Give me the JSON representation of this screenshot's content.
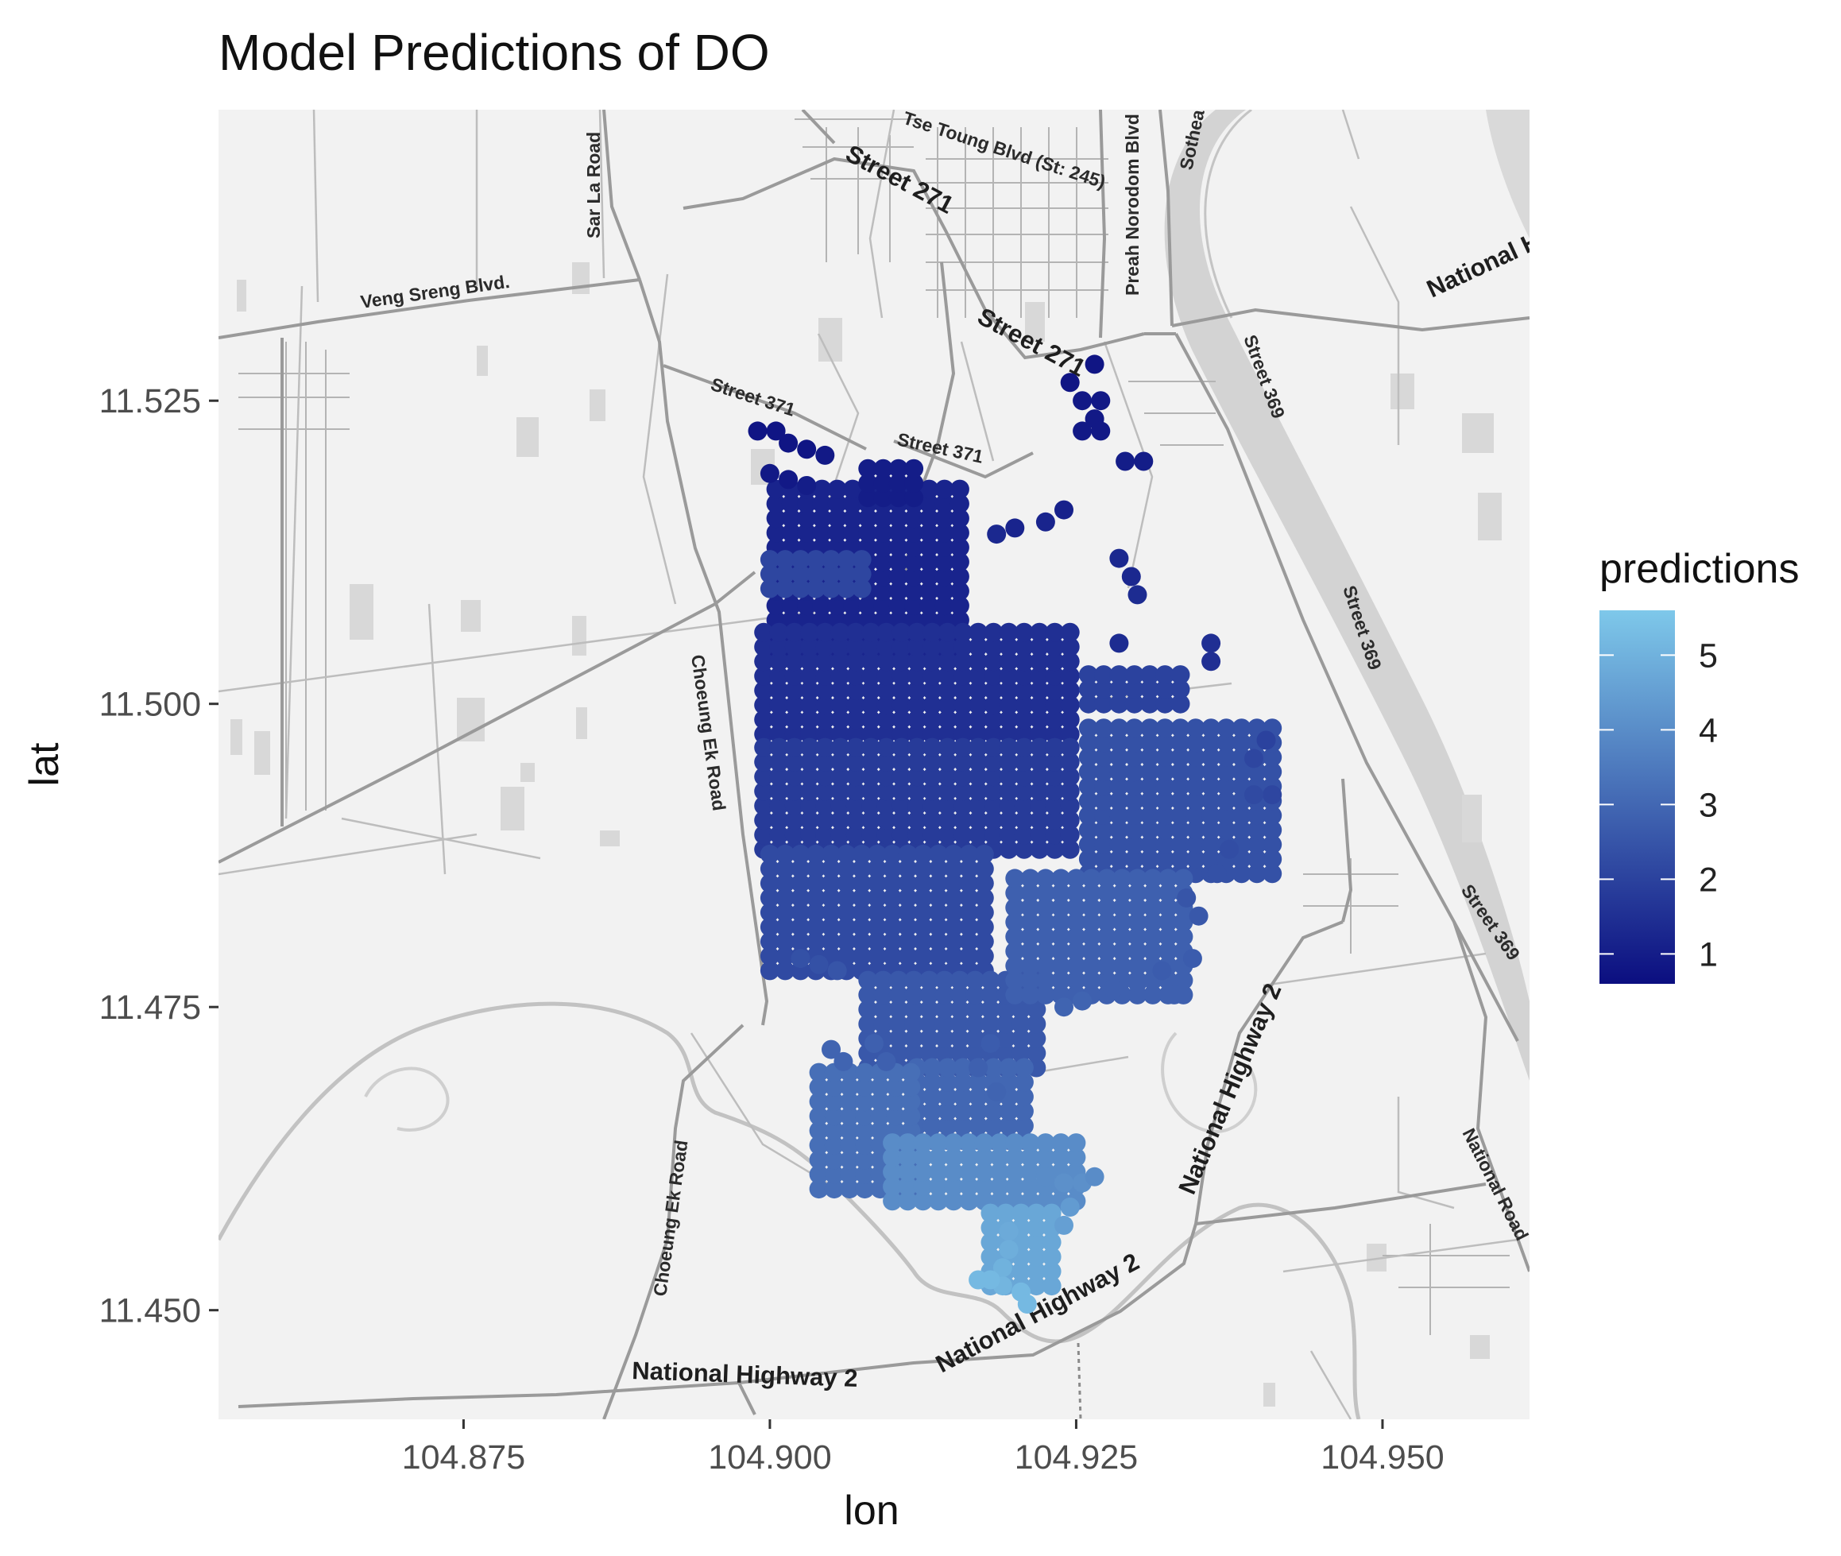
{
  "title": "Model Predictions of DO",
  "colors": {
    "low": "#0b0e80",
    "high": "#7ec8ea",
    "road": "#9a9a9a",
    "river": "#d4d4d4",
    "block": "#dedede",
    "background": "#f2f2f2"
  },
  "map": {
    "road_labels": [
      "Tse Toung Blvd (St: 245)",
      "Sar La Road",
      "Street 271",
      "Preah Norodom Blvd",
      "Sothea",
      "National H",
      "Veng Sreng Blvd.",
      "Street 271",
      "Street 369",
      "Street 371",
      "Street 371",
      "Street 369",
      "Choeung Ek Road",
      "Street 369",
      "National Highway 2",
      "Choeung Ek Road",
      "National Road",
      "National Highway 2",
      "National Highway 2"
    ]
  },
  "chart_data": {
    "type": "scatter",
    "title": "Model Predictions of DO",
    "xlabel": "lon",
    "ylabel": "lat",
    "xlim": [
      104.855,
      104.962
    ],
    "ylim": [
      11.441,
      11.549
    ],
    "x_ticks": [
      "104.875",
      "104.900",
      "104.925",
      "104.950"
    ],
    "x_tick_values": [
      104.875,
      104.9,
      104.925,
      104.95
    ],
    "y_ticks": [
      "11.450",
      "11.475",
      "11.500",
      "11.525"
    ],
    "y_tick_values": [
      11.45,
      11.475,
      11.5,
      11.525
    ],
    "legend": {
      "title": "predictions",
      "position": "right",
      "min": 0.6,
      "max": 5.6,
      "ticks": [
        "1",
        "2",
        "3",
        "4",
        "5"
      ],
      "tick_values": [
        1,
        2,
        3,
        4,
        5
      ]
    },
    "color_scale": {
      "low": "#0b0e80",
      "high": "#7ec8ea"
    },
    "regions": [
      {
        "lon": [
          104.9005,
          104.9165
        ],
        "lat": [
          11.5045,
          11.5185
        ],
        "value": 1.2
      },
      {
        "lon": [
          104.9,
          104.9075
        ],
        "lat": [
          11.5095,
          11.5125
        ],
        "value": 2.1
      },
      {
        "lon": [
          104.908,
          104.9125
        ],
        "lat": [
          11.517,
          11.52
        ],
        "value": 1.0
      },
      {
        "lon": [
          104.8995,
          104.925
        ],
        "lat": [
          11.4975,
          11.507
        ],
        "value": 1.5
      },
      {
        "lon": [
          104.8995,
          104.925
        ],
        "lat": [
          11.488,
          11.4975
        ],
        "value": 1.8
      },
      {
        "lon": [
          104.9,
          104.918
        ],
        "lat": [
          11.478,
          11.488
        ],
        "value": 2.2
      },
      {
        "lon": [
          104.908,
          104.922
        ],
        "lat": [
          11.47,
          11.478
        ],
        "value": 2.6
      },
      {
        "lon": [
          104.926,
          104.942
        ],
        "lat": [
          11.486,
          11.499
        ],
        "value": 2.4
      },
      {
        "lon": [
          104.926,
          104.934
        ],
        "lat": [
          11.5,
          11.503
        ],
        "value": 2.0
      },
      {
        "lon": [
          104.92,
          104.934
        ],
        "lat": [
          11.476,
          11.486
        ],
        "value": 2.8
      },
      {
        "lon": [
          104.912,
          104.921
        ],
        "lat": [
          11.464,
          11.47
        ],
        "value": 3.0
      },
      {
        "lon": [
          104.904,
          104.912
        ],
        "lat": [
          11.46,
          11.47
        ],
        "value": 3.2
      },
      {
        "lon": [
          104.91,
          104.925
        ],
        "lat": [
          11.459,
          11.464
        ],
        "value": 4.0
      },
      {
        "lon": [
          104.918,
          104.923
        ],
        "lat": [
          11.452,
          11.459
        ],
        "value": 4.7
      }
    ],
    "points": [
      {
        "lon": 104.899,
        "lat": 11.5225,
        "value": 0.8
      },
      {
        "lon": 104.9005,
        "lat": 11.5225,
        "value": 0.8
      },
      {
        "lon": 104.9015,
        "lat": 11.5215,
        "value": 0.8
      },
      {
        "lon": 104.903,
        "lat": 11.521,
        "value": 0.8
      },
      {
        "lon": 104.9045,
        "lat": 11.5205,
        "value": 0.9
      },
      {
        "lon": 104.9,
        "lat": 11.519,
        "value": 0.9
      },
      {
        "lon": 104.9015,
        "lat": 11.5185,
        "value": 0.9
      },
      {
        "lon": 104.903,
        "lat": 11.518,
        "value": 1.0
      },
      {
        "lon": 104.9265,
        "lat": 11.528,
        "value": 0.8
      },
      {
        "lon": 104.9245,
        "lat": 11.5265,
        "value": 0.8
      },
      {
        "lon": 104.9255,
        "lat": 11.525,
        "value": 0.9
      },
      {
        "lon": 104.927,
        "lat": 11.525,
        "value": 0.9
      },
      {
        "lon": 104.9265,
        "lat": 11.5235,
        "value": 0.9
      },
      {
        "lon": 104.9255,
        "lat": 11.5225,
        "value": 0.9
      },
      {
        "lon": 104.927,
        "lat": 11.5225,
        "value": 0.9
      },
      {
        "lon": 104.929,
        "lat": 11.52,
        "value": 1.0
      },
      {
        "lon": 104.9305,
        "lat": 11.52,
        "value": 1.0
      },
      {
        "lon": 104.924,
        "lat": 11.516,
        "value": 1.1
      },
      {
        "lon": 104.9225,
        "lat": 11.515,
        "value": 1.2
      },
      {
        "lon": 104.92,
        "lat": 11.5145,
        "value": 1.2
      },
      {
        "lon": 104.9185,
        "lat": 11.514,
        "value": 1.3
      },
      {
        "lon": 104.9285,
        "lat": 11.512,
        "value": 1.3
      },
      {
        "lon": 104.9295,
        "lat": 11.5105,
        "value": 1.3
      },
      {
        "lon": 104.93,
        "lat": 11.509,
        "value": 1.4
      },
      {
        "lon": 104.9285,
        "lat": 11.505,
        "value": 1.4
      },
      {
        "lon": 104.936,
        "lat": 11.505,
        "value": 1.5
      },
      {
        "lon": 104.936,
        "lat": 11.5035,
        "value": 1.5
      },
      {
        "lon": 104.9405,
        "lat": 11.497,
        "value": 2.0
      },
      {
        "lon": 104.9395,
        "lat": 11.4955,
        "value": 2.1
      },
      {
        "lon": 104.941,
        "lat": 11.4925,
        "value": 2.1
      },
      {
        "lon": 104.9395,
        "lat": 11.4925,
        "value": 2.2
      },
      {
        "lon": 104.9375,
        "lat": 11.488,
        "value": 2.3
      },
      {
        "lon": 104.9365,
        "lat": 11.486,
        "value": 2.4
      },
      {
        "lon": 104.934,
        "lat": 11.484,
        "value": 2.5
      },
      {
        "lon": 104.935,
        "lat": 11.4825,
        "value": 2.6
      },
      {
        "lon": 104.9345,
        "lat": 11.479,
        "value": 2.7
      },
      {
        "lon": 104.932,
        "lat": 11.478,
        "value": 2.7
      },
      {
        "lon": 104.933,
        "lat": 11.476,
        "value": 2.8
      },
      {
        "lon": 104.93,
        "lat": 11.477,
        "value": 2.8
      },
      {
        "lon": 104.928,
        "lat": 11.4765,
        "value": 2.8
      },
      {
        "lon": 104.9255,
        "lat": 11.4755,
        "value": 2.9
      },
      {
        "lon": 104.924,
        "lat": 11.475,
        "value": 2.9
      },
      {
        "lon": 104.9025,
        "lat": 11.479,
        "value": 2.4
      },
      {
        "lon": 104.904,
        "lat": 11.4785,
        "value": 2.4
      },
      {
        "lon": 104.9055,
        "lat": 11.478,
        "value": 2.5
      },
      {
        "lon": 104.9085,
        "lat": 11.472,
        "value": 2.8
      },
      {
        "lon": 104.9095,
        "lat": 11.4705,
        "value": 2.8
      },
      {
        "lon": 104.905,
        "lat": 11.4715,
        "value": 2.9
      },
      {
        "lon": 104.906,
        "lat": 11.4705,
        "value": 2.9
      },
      {
        "lon": 104.918,
        "lat": 11.472,
        "value": 2.7
      },
      {
        "lon": 104.917,
        "lat": 11.47,
        "value": 2.8
      },
      {
        "lon": 104.9185,
        "lat": 11.468,
        "value": 2.9
      },
      {
        "lon": 104.9225,
        "lat": 11.461,
        "value": 4.0
      },
      {
        "lon": 104.924,
        "lat": 11.4605,
        "value": 4.1
      },
      {
        "lon": 104.9255,
        "lat": 11.4605,
        "value": 4.1
      },
      {
        "lon": 104.9265,
        "lat": 11.461,
        "value": 4.0
      },
      {
        "lon": 104.9245,
        "lat": 11.4585,
        "value": 4.4
      },
      {
        "lon": 104.924,
        "lat": 11.457,
        "value": 4.5
      },
      {
        "lon": 104.9195,
        "lat": 11.4565,
        "value": 4.8
      },
      {
        "lon": 104.9195,
        "lat": 11.455,
        "value": 4.9
      },
      {
        "lon": 104.919,
        "lat": 11.4535,
        "value": 5.0
      },
      {
        "lon": 104.919,
        "lat": 11.452,
        "value": 5.1
      },
      {
        "lon": 104.918,
        "lat": 11.4525,
        "value": 5.2
      },
      {
        "lon": 104.917,
        "lat": 11.4525,
        "value": 5.2
      },
      {
        "lon": 104.9205,
        "lat": 11.4515,
        "value": 5.2
      },
      {
        "lon": 104.921,
        "lat": 11.4505,
        "value": 5.2
      }
    ]
  }
}
